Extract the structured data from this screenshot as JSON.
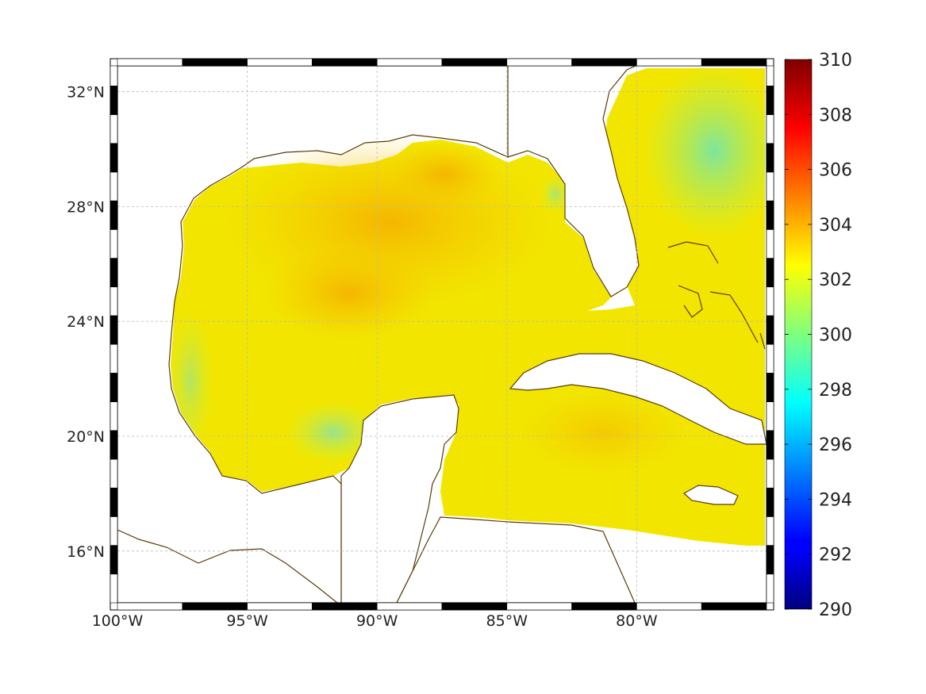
{
  "map": {
    "lon_range": [
      -100,
      -75
    ],
    "lat_range": [
      14.2,
      32.9
    ],
    "lon_ticks": [
      {
        "value": -100,
        "label": "100°W"
      },
      {
        "value": -95,
        "label": "95°W"
      },
      {
        "value": -90,
        "label": "90°W"
      },
      {
        "value": -85,
        "label": "85°W"
      },
      {
        "value": -80,
        "label": "80°W"
      }
    ],
    "lat_ticks": [
      {
        "value": 16,
        "label": "16°N"
      },
      {
        "value": 20,
        "label": "20°N"
      },
      {
        "value": 24,
        "label": "24°N"
      },
      {
        "value": 28,
        "label": "28°N"
      },
      {
        "value": 32,
        "label": "32°N"
      }
    ],
    "grid": true,
    "frame_style": "alternating black/white border",
    "coastline_color": "#5a3c0a",
    "data_description": "sea surface temperature field, Gulf of Mexico and Caribbean"
  },
  "colorbar": {
    "min": 290,
    "max": 310,
    "colormap": "jet",
    "ticks": [
      {
        "value": 310,
        "label": "310"
      },
      {
        "value": 308,
        "label": "308"
      },
      {
        "value": 306,
        "label": "306"
      },
      {
        "value": 304,
        "label": "304"
      },
      {
        "value": 302,
        "label": "302"
      },
      {
        "value": 300,
        "label": "300"
      },
      {
        "value": 298,
        "label": "298"
      },
      {
        "value": 296,
        "label": "296"
      },
      {
        "value": 294,
        "label": "294"
      },
      {
        "value": 292,
        "label": "292"
      },
      {
        "value": 290,
        "label": "290"
      }
    ]
  }
}
